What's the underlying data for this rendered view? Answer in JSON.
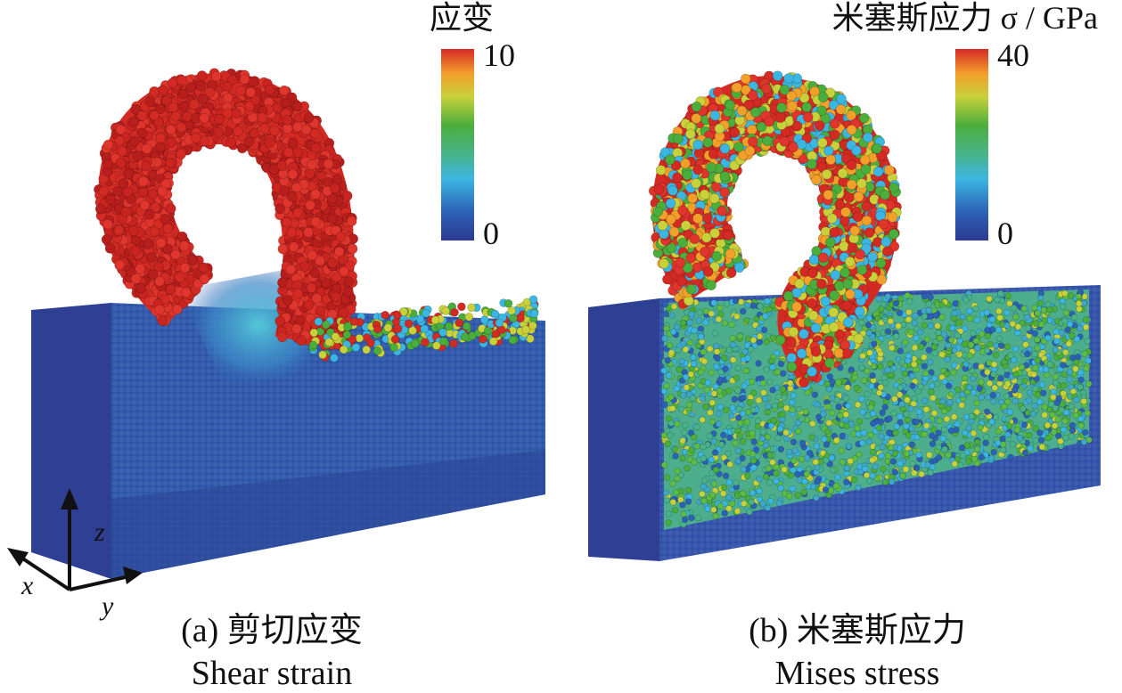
{
  "panels": [
    {
      "colorbar": {
        "title": "应变",
        "max": "10",
        "min": "0"
      },
      "caption": {
        "label": "(a) 剪切应变",
        "english": "Shear strain"
      }
    },
    {
      "colorbar": {
        "title": "米塞斯应力 σ / GPa",
        "max": "40",
        "min": "0"
      },
      "caption": {
        "label": "(b) 米塞斯应力",
        "english": "Mises stress"
      }
    }
  ],
  "axes": {
    "x": "x",
    "y": "y",
    "z": "z"
  }
}
